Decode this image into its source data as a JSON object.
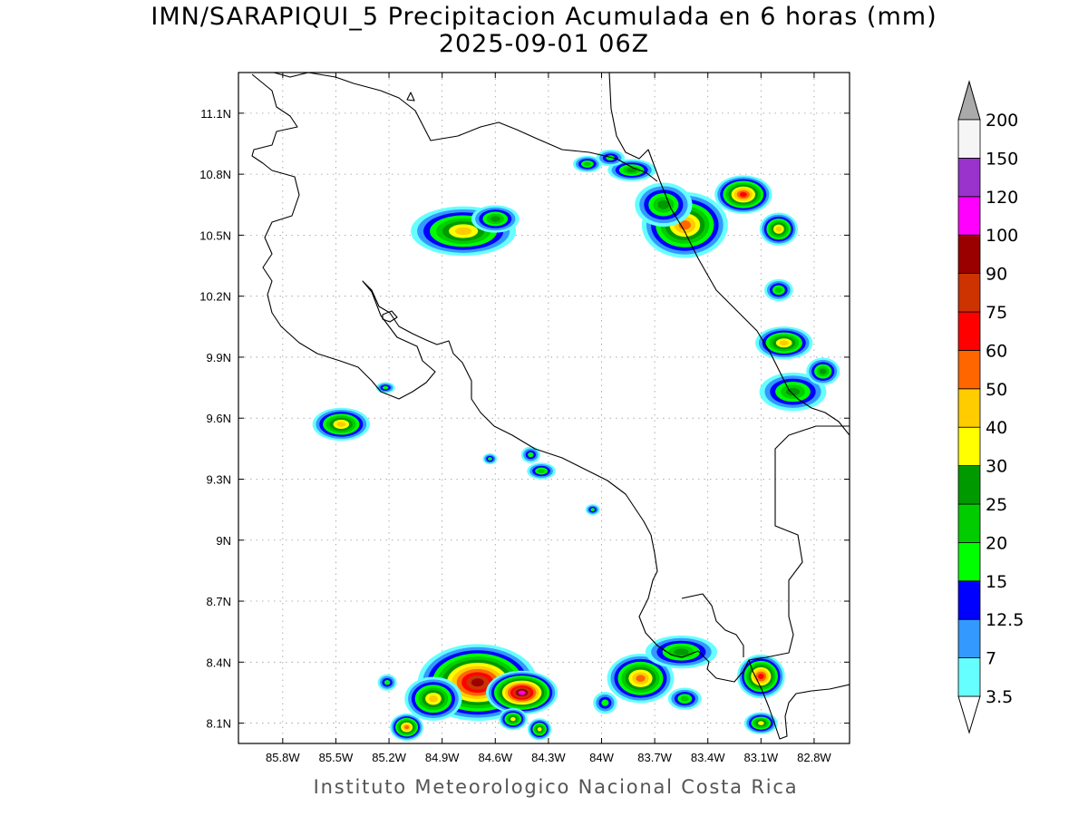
{
  "title": {
    "line1": "IMN/SARAPIQUI_5 Precipitacion Acumulada en 6 horas (mm)",
    "line2": "2025-09-01 06Z"
  },
  "footer": "Instituto Meteorologico Nacional Costa Rica",
  "map": {
    "lon_range": [
      -86.05,
      -82.6
    ],
    "lat_range": [
      8.0,
      11.3
    ],
    "x_ticks": [
      -85.8,
      -85.5,
      -85.2,
      -84.9,
      -84.6,
      -84.3,
      -84.0,
      -83.7,
      -83.4,
      -83.1,
      -82.8
    ],
    "x_tick_labels": [
      "85.8W",
      "85.5W",
      "85.2W",
      "84.9W",
      "84.6W",
      "84.3W",
      "84W",
      "83.7W",
      "83.4W",
      "83.1W",
      "82.8W"
    ],
    "y_ticks": [
      8.1,
      8.4,
      8.7,
      9.0,
      9.3,
      9.6,
      9.9,
      10.2,
      10.5,
      10.8,
      11.1
    ],
    "y_tick_labels": [
      "8.1N",
      "8.4N",
      "8.7N",
      "9N",
      "9.3N",
      "9.6N",
      "9.9N",
      "10.2N",
      "10.5N",
      "10.8N",
      "11.1N"
    ],
    "grid": "dotted"
  },
  "colorbar": {
    "labels": [
      "3.5",
      "7",
      "12.5",
      "15",
      "20",
      "25",
      "30",
      "40",
      "50",
      "60",
      "75",
      "90",
      "100",
      "120",
      "150",
      "200"
    ],
    "colors": [
      "#66ffff",
      "#3399ff",
      "#0000ff",
      "#00ff00",
      "#00cc00",
      "#009900",
      "#ffff00",
      "#ffcc00",
      "#ff6600",
      "#ff0000",
      "#cc3300",
      "#990000",
      "#ff00ff",
      "#9933cc",
      "#f5f5f5"
    ],
    "over_color": "#aaaaaa"
  },
  "precip_cells": [
    {
      "lon": -84.7,
      "lat": 8.3,
      "rx": 0.25,
      "ry": 0.14,
      "level": 11
    },
    {
      "lon": -84.45,
      "lat": 8.25,
      "rx": 0.15,
      "ry": 0.08,
      "level": 12
    },
    {
      "lon": -84.95,
      "lat": 8.22,
      "rx": 0.12,
      "ry": 0.08,
      "level": 7
    },
    {
      "lon": -85.1,
      "lat": 8.08,
      "rx": 0.07,
      "ry": 0.05,
      "level": 8
    },
    {
      "lon": -84.5,
      "lat": 8.12,
      "rx": 0.06,
      "ry": 0.04,
      "level": 6
    },
    {
      "lon": -84.35,
      "lat": 8.07,
      "rx": 0.05,
      "ry": 0.04,
      "level": 6
    },
    {
      "lon": -83.78,
      "lat": 8.32,
      "rx": 0.14,
      "ry": 0.09,
      "level": 8
    },
    {
      "lon": -83.55,
      "lat": 8.45,
      "rx": 0.15,
      "ry": 0.06,
      "level": 5
    },
    {
      "lon": -83.1,
      "lat": 8.33,
      "rx": 0.1,
      "ry": 0.08,
      "level": 9
    },
    {
      "lon": -83.1,
      "lat": 8.1,
      "rx": 0.07,
      "ry": 0.04,
      "level": 6
    },
    {
      "lon": -83.53,
      "lat": 8.22,
      "rx": 0.07,
      "ry": 0.04,
      "level": 4
    },
    {
      "lon": -83.98,
      "lat": 8.2,
      "rx": 0.05,
      "ry": 0.04,
      "level": 3
    },
    {
      "lon": -84.78,
      "lat": 10.52,
      "rx": 0.22,
      "ry": 0.09,
      "level": 7
    },
    {
      "lon": -84.6,
      "lat": 10.58,
      "rx": 0.1,
      "ry": 0.05,
      "level": 5
    },
    {
      "lon": -83.53,
      "lat": 10.55,
      "rx": 0.18,
      "ry": 0.12,
      "level": 8
    },
    {
      "lon": -83.2,
      "lat": 10.7,
      "rx": 0.12,
      "ry": 0.07,
      "level": 9
    },
    {
      "lon": -83.65,
      "lat": 10.65,
      "rx": 0.12,
      "ry": 0.08,
      "level": 5
    },
    {
      "lon": -83.0,
      "lat": 10.53,
      "rx": 0.08,
      "ry": 0.06,
      "level": 7
    },
    {
      "lon": -83.83,
      "lat": 10.82,
      "rx": 0.1,
      "ry": 0.04,
      "level": 5
    },
    {
      "lon": -84.08,
      "lat": 10.85,
      "rx": 0.06,
      "ry": 0.03,
      "level": 4
    },
    {
      "lon": -82.97,
      "lat": 9.97,
      "rx": 0.12,
      "ry": 0.06,
      "level": 7
    },
    {
      "lon": -82.92,
      "lat": 9.73,
      "rx": 0.14,
      "ry": 0.07,
      "level": 5
    },
    {
      "lon": -82.75,
      "lat": 9.83,
      "rx": 0.07,
      "ry": 0.05,
      "level": 5
    },
    {
      "lon": -85.47,
      "lat": 9.57,
      "rx": 0.12,
      "ry": 0.06,
      "level": 7
    },
    {
      "lon": -84.34,
      "lat": 9.34,
      "rx": 0.06,
      "ry": 0.03,
      "level": 4
    },
    {
      "lon": -84.4,
      "lat": 9.42,
      "rx": 0.04,
      "ry": 0.03,
      "level": 3
    },
    {
      "lon": -83.0,
      "lat": 10.23,
      "rx": 0.06,
      "ry": 0.04,
      "level": 4
    },
    {
      "lon": -85.21,
      "lat": 8.3,
      "rx": 0.04,
      "ry": 0.03,
      "level": 3
    },
    {
      "lon": -85.22,
      "lat": 9.75,
      "rx": 0.04,
      "ry": 0.02,
      "level": 3
    },
    {
      "lon": -84.05,
      "lat": 9.15,
      "rx": 0.03,
      "ry": 0.02,
      "level": 3
    },
    {
      "lon": -84.63,
      "lat": 9.4,
      "rx": 0.03,
      "ry": 0.02,
      "level": 3
    },
    {
      "lon": -83.95,
      "lat": 10.88,
      "rx": 0.06,
      "ry": 0.03,
      "level": 3
    }
  ]
}
